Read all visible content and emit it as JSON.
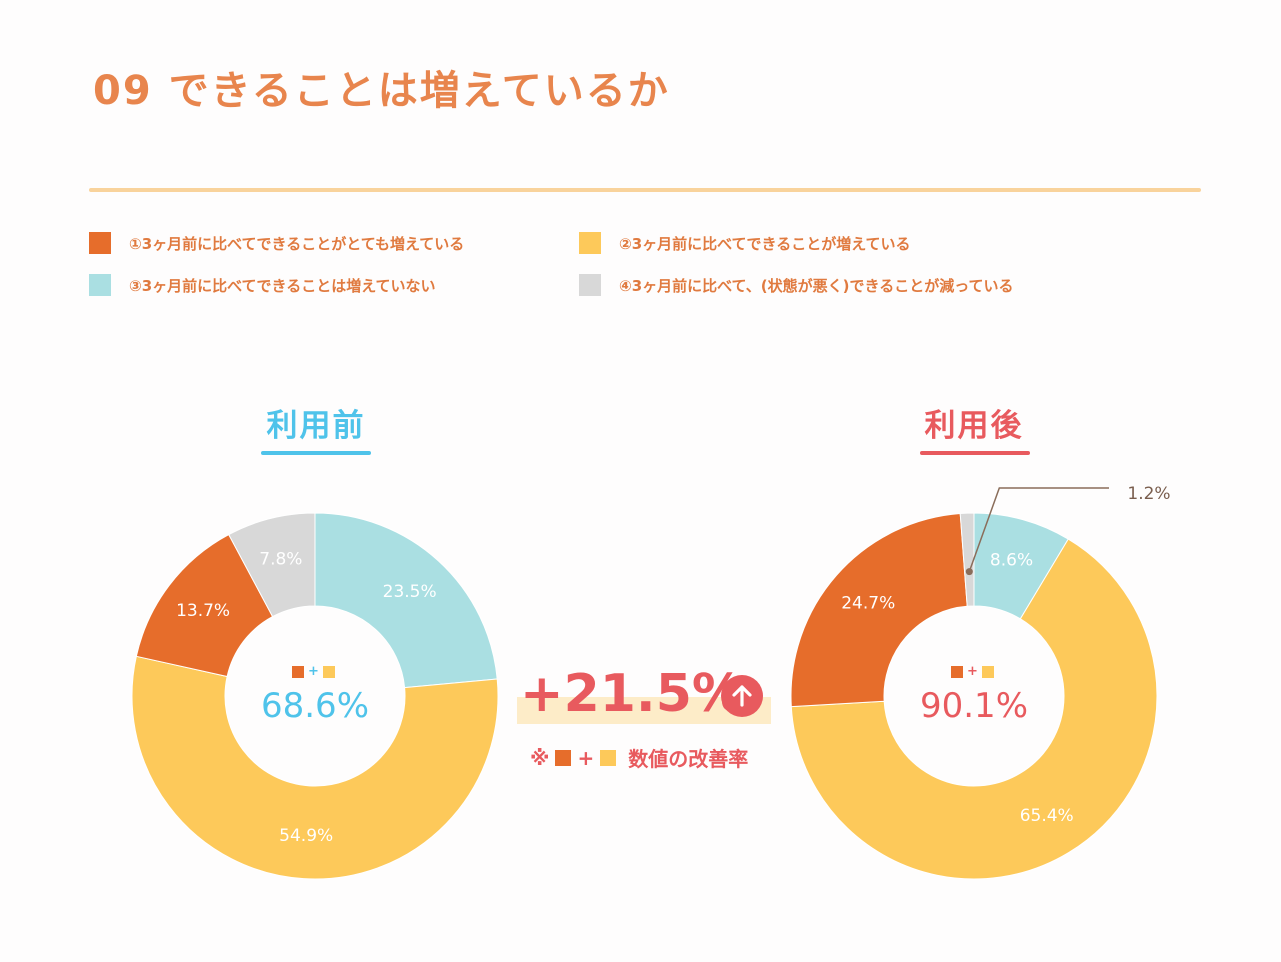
{
  "title": "09 できることは増えているか",
  "legend": [
    {
      "label": "①3ヶ月前に比べてできることがとても増えている",
      "color": "#e66d2b"
    },
    {
      "label": "②3ヶ月前に比べてできることが増えている",
      "color": "#fdc95a"
    },
    {
      "label": "③3ヶ月前に比べてできることは増えていない",
      "color": "#aadfe2"
    },
    {
      "label": "④3ヶ月前に比べて、(状態が悪く)できることが減っている",
      "color": "#d8d8d8"
    }
  ],
  "improvement": {
    "value": "+21.5%",
    "note_prefix": "※",
    "plus": "+",
    "note_suffix": "数値の改善率"
  },
  "colors": {
    "before": "#4fc3ea",
    "after": "#e85a5e",
    "improve": "#e85a5e"
  },
  "chart_data": [
    {
      "type": "pie",
      "title": "利用前",
      "categories": [
        "①",
        "②",
        "③",
        "④"
      ],
      "values": [
        13.7,
        54.9,
        23.5,
        7.8
      ],
      "labels": [
        "13.7%",
        "54.9%",
        "23.5%",
        "7.8%"
      ],
      "center_icons_plus": "+",
      "center_value": "68.6%"
    },
    {
      "type": "pie",
      "title": "利用後",
      "categories": [
        "①",
        "②",
        "③",
        "④"
      ],
      "values": [
        24.7,
        65.4,
        8.6,
        1.2
      ],
      "labels": [
        "24.7%",
        "65.4%",
        "8.6%",
        "1.2%"
      ],
      "center_icons_plus": "+",
      "center_value": "90.1%"
    }
  ]
}
